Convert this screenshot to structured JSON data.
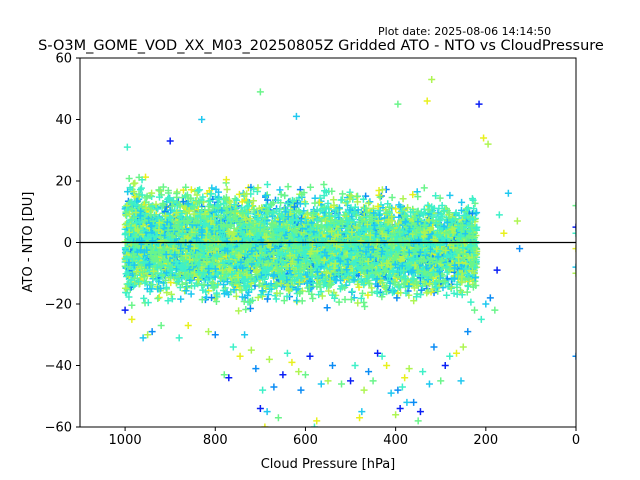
{
  "plot_date": "Plot date: 2025-08-06 14:14:50",
  "chart_data": {
    "type": "scatter",
    "title": "S-O3M_GOME_VOD_XX_M03_20250805Z Gridded ATO - NTO vs CloudPressure",
    "xlabel": "Cloud Pressure [hPa]",
    "ylabel": "ATO - NTO [DU]",
    "xlim": [
      1100,
      0
    ],
    "ylim": [
      -60,
      60
    ],
    "x_inverted": true,
    "xticks": [
      1000,
      800,
      600,
      400,
      200,
      0
    ],
    "yticks": [
      -60,
      -40,
      -20,
      0,
      20,
      40,
      60
    ],
    "marker": "+",
    "grid": false,
    "reference_line": {
      "y": 0,
      "color": "#000000"
    },
    "color_map": [
      "#0a1ff5",
      "#0a8cf5",
      "#1ec8f0",
      "#3ef0c8",
      "#6af58a",
      "#aef552",
      "#e8f01e"
    ],
    "series": [
      {
        "points": [
          [
            1000,
            -22
          ],
          [
            995,
            31
          ],
          [
            985,
            -25
          ],
          [
            960,
            -31
          ],
          [
            950,
            -30
          ],
          [
            940,
            -29
          ],
          [
            920,
            -27
          ],
          [
            900,
            33
          ],
          [
            880,
            -31
          ],
          [
            860,
            -27
          ],
          [
            830,
            40
          ],
          [
            815,
            -29
          ],
          [
            800,
            -30
          ],
          [
            780,
            -43
          ],
          [
            770,
            -44
          ],
          [
            760,
            -34
          ],
          [
            745,
            -37
          ],
          [
            735,
            -30
          ],
          [
            720,
            -35
          ],
          [
            710,
            -41
          ],
          [
            700,
            49
          ],
          [
            700,
            -54
          ],
          [
            695,
            -48
          ],
          [
            690,
            -60
          ],
          [
            685,
            -55
          ],
          [
            680,
            -38
          ],
          [
            670,
            -47
          ],
          [
            660,
            -57
          ],
          [
            650,
            -43
          ],
          [
            640,
            -36
          ],
          [
            630,
            -39
          ],
          [
            620,
            41
          ],
          [
            615,
            -42
          ],
          [
            610,
            -48
          ],
          [
            600,
            -43
          ],
          [
            590,
            -37
          ],
          [
            580,
            -60
          ],
          [
            575,
            -58
          ],
          [
            565,
            -46
          ],
          [
            550,
            -45
          ],
          [
            540,
            -40
          ],
          [
            520,
            -46
          ],
          [
            500,
            -45
          ],
          [
            490,
            -40
          ],
          [
            480,
            -57
          ],
          [
            475,
            -55
          ],
          [
            470,
            -48
          ],
          [
            460,
            -42
          ],
          [
            450,
            -45
          ],
          [
            440,
            -36
          ],
          [
            430,
            -37
          ],
          [
            420,
            -40
          ],
          [
            410,
            -49
          ],
          [
            400,
            -56
          ],
          [
            395,
            -48
          ],
          [
            395,
            45
          ],
          [
            390,
            -54
          ],
          [
            385,
            -47
          ],
          [
            380,
            -44
          ],
          [
            375,
            -52
          ],
          [
            370,
            -41
          ],
          [
            360,
            -52
          ],
          [
            350,
            -58
          ],
          [
            345,
            -55
          ],
          [
            340,
            -42
          ],
          [
            330,
            46
          ],
          [
            325,
            -46
          ],
          [
            320,
            53
          ],
          [
            315,
            -34
          ],
          [
            300,
            -45
          ],
          [
            290,
            -40
          ],
          [
            280,
            -37
          ],
          [
            265,
            -36
          ],
          [
            255,
            -45
          ],
          [
            250,
            -34
          ],
          [
            240,
            -29
          ],
          [
            225,
            -22
          ],
          [
            215,
            45
          ],
          [
            210,
            -25
          ],
          [
            205,
            34
          ],
          [
            200,
            -20
          ],
          [
            195,
            32
          ],
          [
            190,
            -18
          ],
          [
            180,
            -22
          ],
          [
            175,
            -9
          ],
          [
            170,
            9
          ],
          [
            160,
            3
          ],
          [
            150,
            16
          ],
          [
            130,
            7
          ],
          [
            125,
            -2
          ],
          [
            0,
            12
          ],
          [
            0,
            5
          ],
          [
            0,
            3
          ],
          [
            0,
            -2
          ],
          [
            0,
            -8
          ],
          [
            0,
            -10
          ],
          [
            0,
            -37
          ]
        ]
      }
    ]
  }
}
